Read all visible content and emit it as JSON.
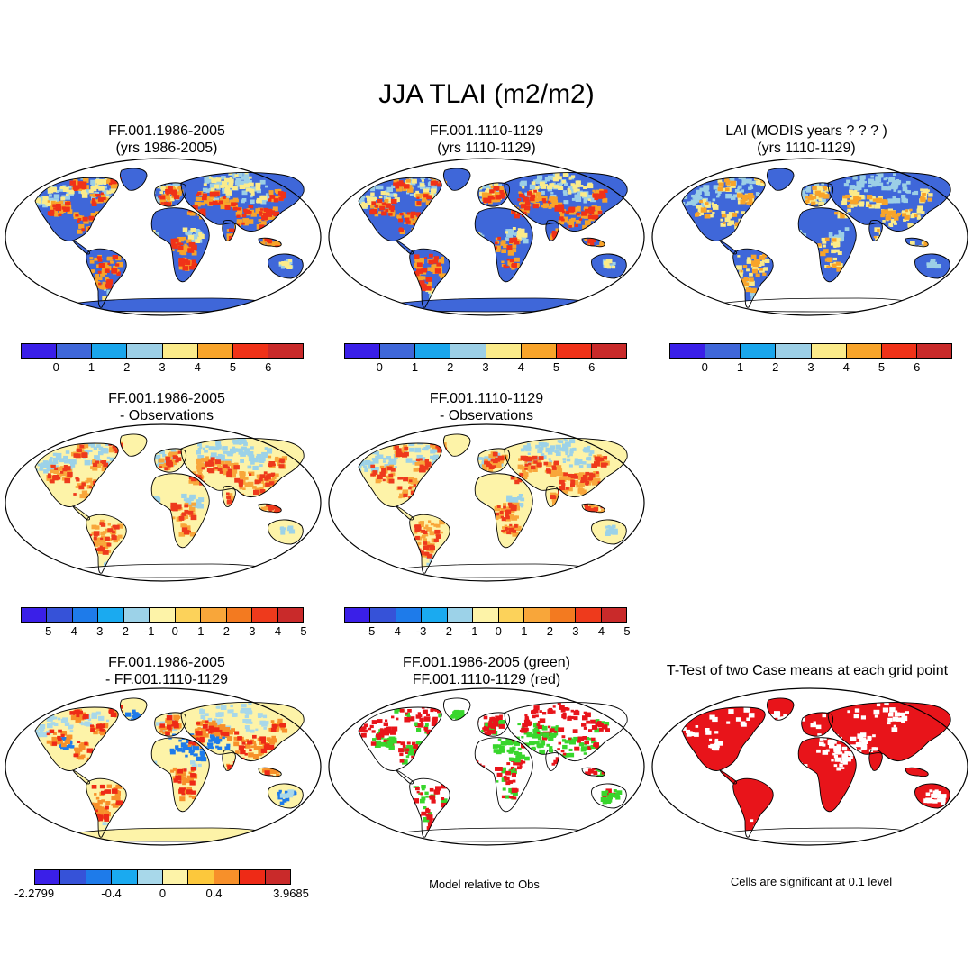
{
  "title": "JJA TLAI (m2/m2)",
  "colors": {
    "lai_scale": [
      "#3a1fe8",
      "#3f67d9",
      "#1aa6ec",
      "#9ccfe6",
      "#fbeb8a",
      "#f8a42a",
      "#f03218",
      "#c92a2a"
    ],
    "diff_scale": [
      "#3a1fe8",
      "#3652d8",
      "#1e7bea",
      "#1aaaf0",
      "#9cd2e8",
      "#fdf3a8",
      "#fcd25a",
      "#f8a63a",
      "#f37a20",
      "#ee3a1c",
      "#c92a2a"
    ],
    "case_diff_scale": [
      "#3a1fe8",
      "#3652d8",
      "#1e7bea",
      "#1aaaf0",
      "#a8d8ea",
      "#fdf3a8",
      "#fcc83c",
      "#f7902a",
      "#ee2a16",
      "#c92a2a"
    ],
    "green_marker": "#38d62c",
    "red_marker": "#e8141a"
  },
  "panels": [
    {
      "title1": "FF.001.1986-2005",
      "title2": "(yrs 1986-2005)",
      "style": "model"
    },
    {
      "title1": "FF.001.1110-1129",
      "title2": "(yrs 1110-1129)",
      "style": "model"
    },
    {
      "title1": "LAI (MODIS years ? ? ? )",
      "title2": "(yrs 1110-1129)",
      "style": "obs"
    },
    {
      "title1": "FF.001.1986-2005",
      "title2": "- Observations",
      "style": "diffobs"
    },
    {
      "title1": "FF.001.1110-1129",
      "title2": "- Observations",
      "style": "diffobs"
    },
    {
      "title1": "FF.001.1986-2005",
      "title2": "- FF.001.1110-1129",
      "style": "casediff"
    },
    {
      "title1": "FF.001.1986-2005 (green)",
      "title2": "FF.001.1110-1129 (red)",
      "style": "greenred"
    },
    {
      "title1": "T-Test of two Case means at each grid point",
      "title2": "",
      "style": "ttest"
    }
  ],
  "colorbars": {
    "lai_labels": [
      "0",
      "1",
      "2",
      "3",
      "4",
      "5",
      "6"
    ],
    "diff_labels": [
      "-5",
      "-4",
      "-3",
      "-2",
      "-1",
      "0",
      "1",
      "2",
      "3",
      "4",
      "5"
    ],
    "case_diff_labels": [
      "-2.2799",
      "-0.4",
      "0",
      "0.4",
      "3.9685"
    ]
  },
  "notes": {
    "model_relative": "Model relative to Obs",
    "significance": "Cells are significant at 0.1 level"
  }
}
